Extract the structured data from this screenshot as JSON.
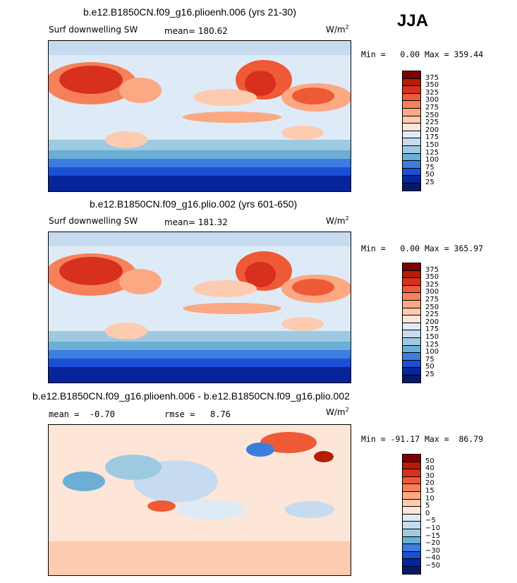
{
  "season_label": "JJA",
  "panels": [
    {
      "title": "b.e12.B1850CN.f09_g16.plioenh.006 (yrs 21-30)",
      "variable": "Surf downwelling SW",
      "stat_line": "mean= 180.62",
      "units": "W/m",
      "units_sup": "2",
      "minmax": "Min =   0.00 Max = 359.44"
    },
    {
      "title": "b.e12.B1850CN.f09_g16.plio.002 (yrs 601-650)",
      "variable": "Surf downwelling SW",
      "stat_line": "mean= 181.32",
      "units": "W/m",
      "units_sup": "2",
      "minmax": "Min =   0.00 Max = 365.97"
    },
    {
      "title": "b.e12.B1850CN.f09_g16.plioenh.006 - b.e12.B1850CN.f09_g16.plio.002",
      "mean_label": "mean =  -0.70",
      "rmse_label": "rmse =   8.76",
      "units": "W/m",
      "units_sup": "2",
      "minmax": "Min = -91.17 Max =  86.79"
    }
  ],
  "chart_data": [
    {
      "type": "heatmap",
      "title": "b.e12.B1850CN.f09_g16.plioenh.006 (yrs 21-30)",
      "variable": "Surf downwelling SW",
      "units": "W/m^2",
      "mean": 180.62,
      "min": 0.0,
      "max": 359.44,
      "colorbar_levels": [
        "375",
        "350",
        "325",
        "300",
        "275",
        "250",
        "225",
        "200",
        "175",
        "150",
        "125",
        "100",
        "75",
        "50",
        "25"
      ],
      "colorbar_colors": [
        "#7f0000",
        "#b41e05",
        "#d7301f",
        "#ee5a36",
        "#f6805a",
        "#fca882",
        "#fdcbb0",
        "#fde6d8",
        "#deebf7",
        "#c6dbef",
        "#9ecae1",
        "#6baed6",
        "#3d7de0",
        "#1a4fd6",
        "#08249a",
        "#041a6b"
      ]
    },
    {
      "type": "heatmap",
      "title": "b.e12.B1850CN.f09_g16.plio.002 (yrs 601-650)",
      "variable": "Surf downwelling SW",
      "units": "W/m^2",
      "mean": 181.32,
      "min": 0.0,
      "max": 365.97,
      "colorbar_levels": [
        "375",
        "350",
        "325",
        "300",
        "275",
        "250",
        "225",
        "200",
        "175",
        "150",
        "125",
        "100",
        "75",
        "50",
        "25"
      ],
      "colorbar_colors": [
        "#7f0000",
        "#b41e05",
        "#d7301f",
        "#ee5a36",
        "#f6805a",
        "#fca882",
        "#fdcbb0",
        "#fde6d8",
        "#deebf7",
        "#c6dbef",
        "#9ecae1",
        "#6baed6",
        "#3d7de0",
        "#1a4fd6",
        "#08249a",
        "#041a6b"
      ]
    },
    {
      "type": "heatmap",
      "title": "b.e12.B1850CN.f09_g16.plioenh.006 - b.e12.B1850CN.f09_g16.plio.002",
      "units": "W/m^2",
      "mean": -0.7,
      "rmse": 8.76,
      "min": -91.17,
      "max": 86.79,
      "colorbar_levels": [
        "50",
        "40",
        "30",
        "20",
        "15",
        "10",
        "5",
        "0",
        "−5",
        "−10",
        "−15",
        "−20",
        "−30",
        "−40",
        "−50"
      ],
      "colorbar_colors": [
        "#7f0000",
        "#b41e05",
        "#d7301f",
        "#ee5a36",
        "#f6805a",
        "#fca882",
        "#fdcbb0",
        "#fde6d8",
        "#deebf7",
        "#c6dbef",
        "#9ecae1",
        "#6baed6",
        "#3d7de0",
        "#1a4fd6",
        "#08249a",
        "#041a6b"
      ]
    }
  ]
}
